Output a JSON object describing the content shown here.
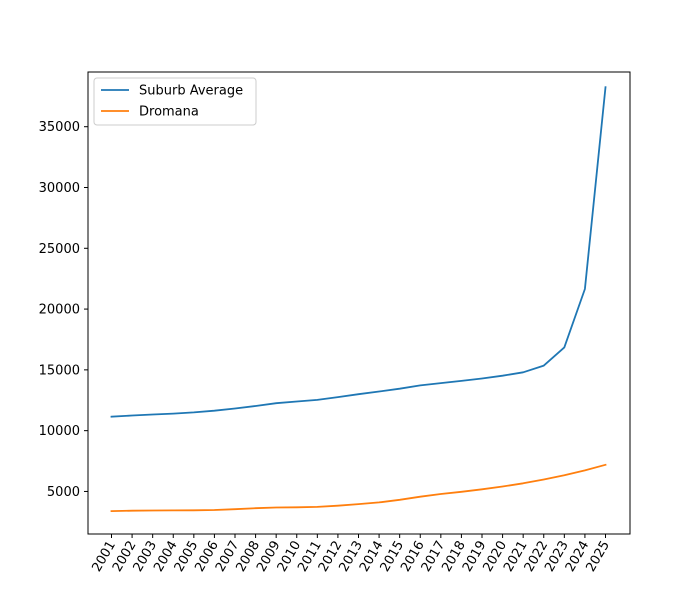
{
  "chart_data": {
    "type": "line",
    "title": "",
    "xlabel": "",
    "ylabel": "",
    "x": [
      "2001",
      "2002",
      "2003",
      "2004",
      "2005",
      "2006",
      "2007",
      "2008",
      "2009",
      "2010",
      "2011",
      "2012",
      "2013",
      "2014",
      "2015",
      "2016",
      "2017",
      "2018",
      "2019",
      "2020",
      "2021",
      "2022",
      "2023",
      "2024",
      "2025"
    ],
    "ylim": [
      1500,
      39500
    ],
    "yticks": [
      5000,
      10000,
      15000,
      20000,
      25000,
      30000,
      35000
    ],
    "grid": false,
    "legend": "top-left",
    "series": [
      {
        "name": "Suburb Average",
        "color": "#1f77b4",
        "values": [
          11150,
          11250,
          11330,
          11400,
          11500,
          11640,
          11820,
          12030,
          12260,
          12400,
          12530,
          12760,
          13000,
          13220,
          13450,
          13720,
          13910,
          14090,
          14290,
          14520,
          14800,
          15350,
          16850,
          21650,
          38250
        ]
      },
      {
        "name": "Dromana",
        "color": "#ff7f0e",
        "values": [
          3380,
          3420,
          3430,
          3440,
          3450,
          3470,
          3540,
          3620,
          3680,
          3700,
          3730,
          3830,
          3960,
          4100,
          4310,
          4570,
          4790,
          4970,
          5180,
          5410,
          5670,
          5980,
          6330,
          6730,
          7190
        ]
      }
    ]
  }
}
